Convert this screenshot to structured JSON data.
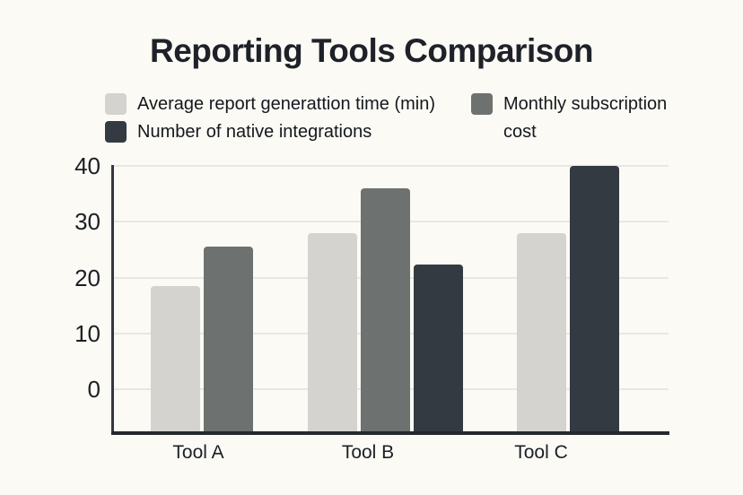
{
  "title": "Reporting Tools Comparison",
  "colors": {
    "background": "#fbfaf5",
    "text": "#1b1f24",
    "grid": "#e8e7e2",
    "axis": "#34383e",
    "series_light_gray": "#d4d3cf",
    "series_medium_gray": "#6d716f",
    "series_dark_slate": "#333a42"
  },
  "legend": {
    "items": [
      {
        "label": "Average report generattion time (min)",
        "color": "#d4d3cf"
      },
      {
        "label": "Monthly subscription cost",
        "color": "#6d716f"
      },
      {
        "label": "Number of native integrations",
        "color": "#333a42"
      }
    ]
  },
  "chart_data": {
    "type": "bar",
    "title": "Reporting Tools Comparison",
    "categories": [
      "Tool A",
      "Tool B",
      "Tool C"
    ],
    "series": [
      {
        "name": "Average report generattion time (min)",
        "color": "#d4d3cf",
        "values": [
          18.5,
          28,
          28
        ]
      },
      {
        "name": "Monthly subscription cost",
        "color": "#6d716f",
        "values": [
          25.5,
          36,
          null
        ]
      },
      {
        "name": "Number of native integrations",
        "color": "#333a42",
        "values": [
          null,
          22.3,
          40
        ]
      }
    ],
    "xlabel": "",
    "ylabel": "",
    "ylim": [
      0,
      40
    ],
    "yticks": [
      0,
      10,
      20,
      30,
      40
    ],
    "grid": true,
    "legend_position": "top"
  }
}
